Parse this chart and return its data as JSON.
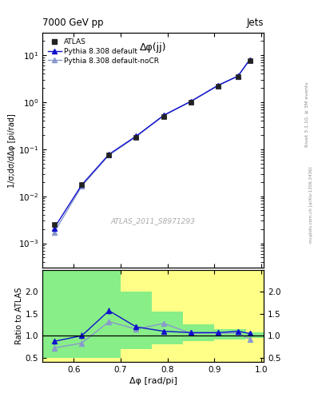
{
  "title_top": "7000 GeV pp",
  "title_right": "Jets",
  "annotation": "ATLAS_2011_S8971293",
  "rivet_label": "Rivet 3.1.10, ≥ 3M events",
  "inspire_label": "mcplots.cern.ch [arXiv:1306.3436]",
  "plot_title": "Δφ(jj)",
  "ylabel_main": "1/σ;dσ/dΔφ [pi/rad]",
  "ylabel_ratio": "Ratio to ATLAS",
  "xlabel": "Δφ [rad/pi]",
  "x_data": [
    0.558,
    0.617,
    0.675,
    0.733,
    0.792,
    0.85,
    0.908,
    0.95,
    0.975
  ],
  "atlas_y": [
    0.0025,
    0.018,
    0.075,
    0.18,
    0.5,
    1.0,
    2.2,
    3.5,
    7.5
  ],
  "atlas_yerr": [
    0.00015,
    0.001,
    0.004,
    0.01,
    0.025,
    0.05,
    0.1,
    0.15,
    0.3
  ],
  "pythia_default_y": [
    0.0021,
    0.0175,
    0.078,
    0.19,
    0.53,
    1.05,
    2.3,
    3.6,
    8.0
  ],
  "pythia_nocr_y": [
    0.0017,
    0.0165,
    0.075,
    0.185,
    0.52,
    1.04,
    2.25,
    3.55,
    7.9
  ],
  "ratio_default": [
    0.87,
    1.0,
    1.57,
    1.2,
    1.1,
    1.07,
    1.07,
    1.1,
    1.05
  ],
  "ratio_default_err": [
    0.06,
    0.07,
    0.08,
    0.06,
    0.05,
    0.04,
    0.04,
    0.04,
    0.04
  ],
  "ratio_nocr": [
    0.72,
    0.83,
    1.32,
    1.15,
    1.28,
    1.05,
    1.06,
    1.06,
    0.92
  ],
  "ratio_nocr_err": [
    0.06,
    0.06,
    0.07,
    0.05,
    0.05,
    0.04,
    0.04,
    0.04,
    0.04
  ],
  "band_x_edges": [
    0.533,
    0.7,
    0.767,
    0.833,
    0.9,
    0.967,
    1.005
  ],
  "band_yellow_lo": [
    0.4,
    0.4,
    0.4,
    0.4,
    0.4,
    0.4
  ],
  "band_yellow_hi": [
    2.5,
    2.5,
    2.5,
    2.5,
    2.5,
    2.5
  ],
  "band_green_lo": [
    0.5,
    0.7,
    0.8,
    0.88,
    0.92,
    0.95
  ],
  "band_green_hi": [
    2.5,
    2.0,
    1.55,
    1.25,
    1.15,
    1.08
  ],
  "color_atlas": "#222222",
  "color_default": "#1111cc",
  "color_nocr": "#8899cc",
  "color_yellow": "#ffff88",
  "color_green": "#88ee88",
  "xlim": [
    0.533,
    1.005
  ],
  "ylim_main": [
    0.0003,
    30
  ],
  "ylim_ratio": [
    0.4,
    2.5
  ],
  "ratio_yticks": [
    0.5,
    1.0,
    1.5,
    2.0
  ],
  "main_xticks": [
    0.6,
    0.7,
    0.8,
    0.9,
    1.0
  ]
}
